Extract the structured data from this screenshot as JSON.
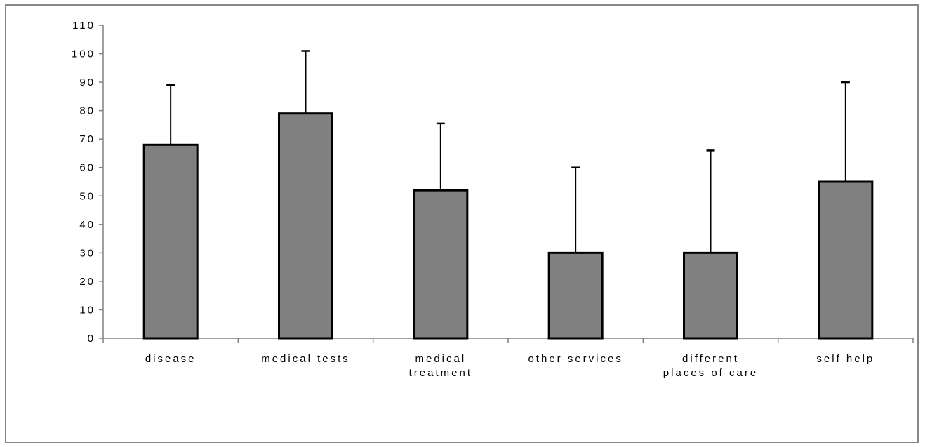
{
  "chart_data": {
    "type": "bar",
    "title": "",
    "xlabel": "",
    "ylabel": "",
    "ylim": [
      0,
      110
    ],
    "yticks": [
      0,
      10,
      20,
      30,
      40,
      50,
      60,
      70,
      80,
      90,
      100,
      110
    ],
    "categories": [
      [
        "disease"
      ],
      [
        "medical tests"
      ],
      [
        "medical",
        "treatment"
      ],
      [
        "other services"
      ],
      [
        "different",
        "places of care"
      ],
      [
        "self help"
      ]
    ],
    "values": [
      68,
      79,
      52,
      30,
      30,
      55
    ],
    "error_upper": [
      89,
      101,
      75.5,
      60,
      66,
      90
    ],
    "grid": false,
    "legend": "none",
    "colors": {
      "bar_fill": "#808080",
      "bar_edge": "#000000",
      "axis": "#808080",
      "frame": "#888888"
    }
  }
}
